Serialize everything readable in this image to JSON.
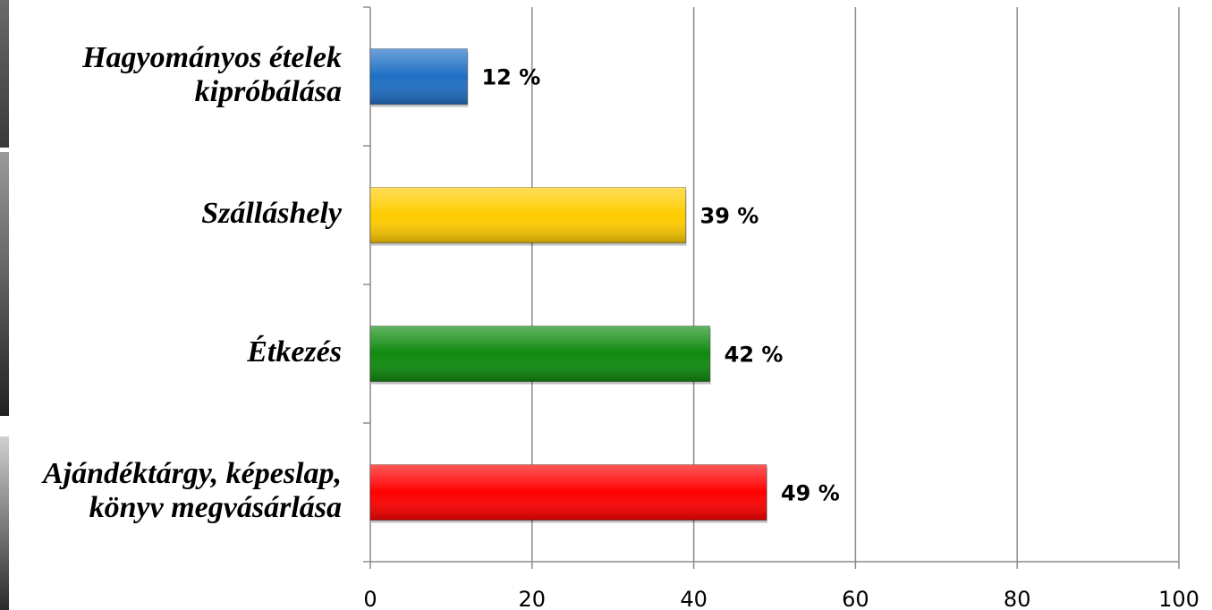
{
  "chart_data": {
    "type": "bar",
    "orientation": "horizontal",
    "categories": [
      [
        "Hagyományos ételek",
        "kipróbálása"
      ],
      [
        "Szálláshely"
      ],
      [
        "Étkezés"
      ],
      [
        "Ajándéktárgy, képeslap,",
        "könyv megvásárlása"
      ]
    ],
    "values": [
      12,
      39,
      42,
      49
    ],
    "data_labels": [
      "12 %",
      "39 %",
      "42 %",
      "49 %"
    ],
    "bar_colors": [
      "#1f6fc5",
      "#ffcc00",
      "#0e8a0e",
      "#ff0000"
    ],
    "xlim": [
      0,
      100
    ],
    "x_ticks": [
      "0",
      "20",
      "40",
      "60",
      "80",
      "100"
    ],
    "grid": true,
    "legend": "none"
  }
}
